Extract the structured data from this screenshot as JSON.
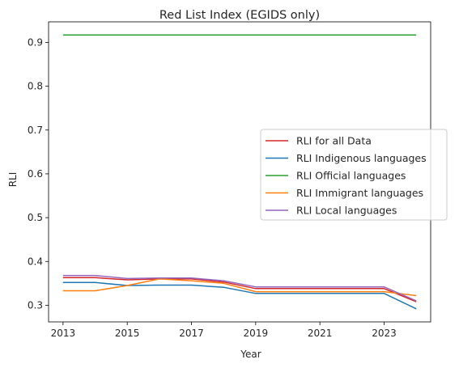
{
  "chart_data": {
    "type": "line",
    "title": "Red List Index (EGIDS only)",
    "xlabel": "Year",
    "ylabel": "RLI",
    "x": [
      2013,
      2014,
      2015,
      2016,
      2017,
      2018,
      2019,
      2020,
      2021,
      2022,
      2023,
      2024
    ],
    "xlim": [
      2012.55,
      2024.45
    ],
    "ylim": [
      0.262,
      0.947
    ],
    "xticks": [
      2013,
      2015,
      2017,
      2019,
      2021,
      2023
    ],
    "yticks": [
      0.3,
      0.4,
      0.5,
      0.6,
      0.7,
      0.8,
      0.9
    ],
    "ytick_labels": [
      "0.3",
      "0.4",
      "0.5",
      "0.6",
      "0.7",
      "0.8",
      "0.9"
    ],
    "grid": false,
    "legend_placement": "center-right",
    "series": [
      {
        "name": "RLI for all Data",
        "color": "#d62728",
        "values": [
          0.363,
          0.363,
          0.358,
          0.36,
          0.36,
          0.353,
          0.338,
          0.338,
          0.338,
          0.338,
          0.338,
          0.308
        ]
      },
      {
        "name": "RLI Indigenous languages",
        "color": "#1f77b4",
        "values": [
          0.352,
          0.352,
          0.345,
          0.346,
          0.346,
          0.341,
          0.327,
          0.327,
          0.327,
          0.327,
          0.327,
          0.292
        ]
      },
      {
        "name": "RLI Official languages",
        "color": "#2ca02c",
        "values": [
          0.917,
          0.917,
          0.917,
          0.917,
          0.917,
          0.917,
          0.917,
          0.917,
          0.917,
          0.917,
          0.917,
          0.917
        ]
      },
      {
        "name": "RLI Immigrant languages",
        "color": "#ff7f0e",
        "values": [
          0.333,
          0.333,
          0.345,
          0.36,
          0.356,
          0.35,
          0.331,
          0.331,
          0.331,
          0.331,
          0.331,
          0.322
        ]
      },
      {
        "name": "RLI Local languages",
        "color": "#9467bd",
        "values": [
          0.368,
          0.368,
          0.361,
          0.362,
          0.362,
          0.356,
          0.342,
          0.342,
          0.342,
          0.342,
          0.342,
          0.31
        ]
      }
    ]
  }
}
